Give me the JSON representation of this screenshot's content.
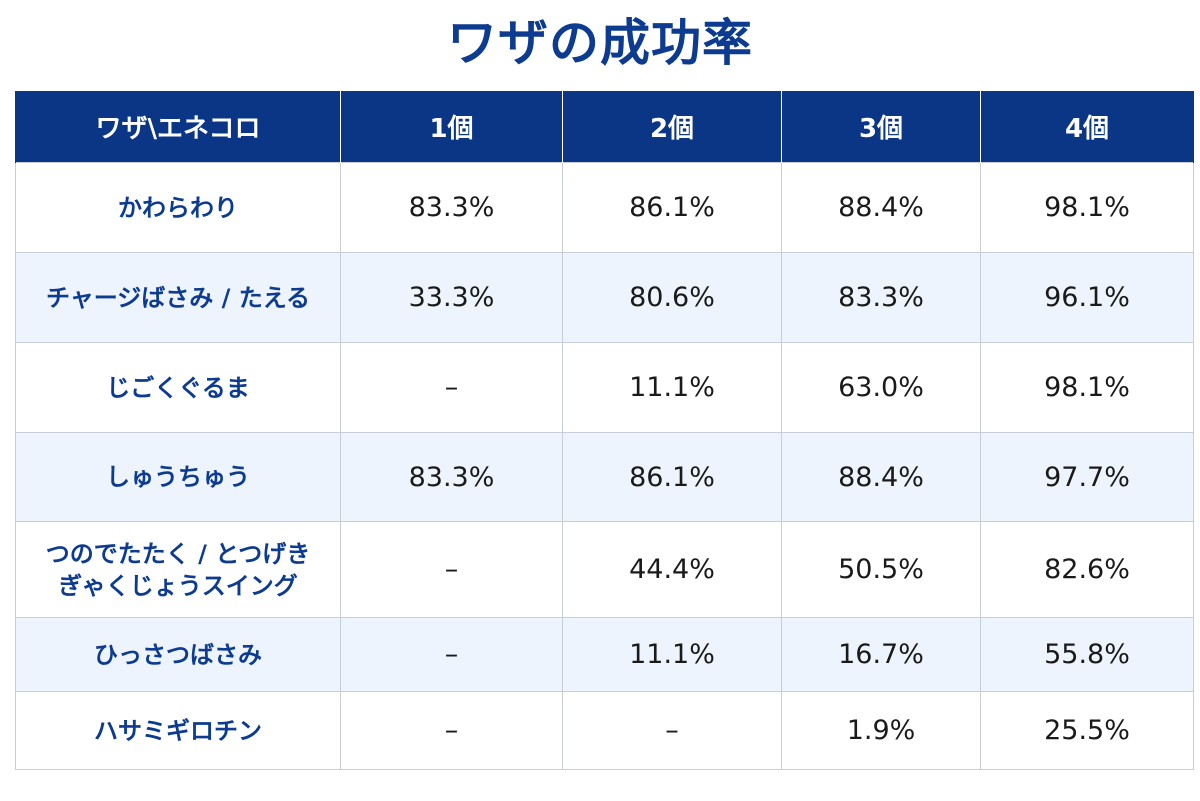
{
  "title": "ワザの成功率",
  "table": {
    "headers": [
      "ワザ\\エネコロ",
      "1個",
      "2個",
      "3個",
      "4個"
    ],
    "rows": [
      {
        "name": [
          "かわらわり"
        ],
        "values": [
          "83.3%",
          "86.1%",
          "88.4%",
          "98.1%"
        ]
      },
      {
        "name": [
          "チャージばさみ / たえる"
        ],
        "values": [
          "33.3%",
          "80.6%",
          "83.3%",
          "96.1%"
        ]
      },
      {
        "name": [
          "じごくぐるま"
        ],
        "values": [
          "–",
          "11.1%",
          "63.0%",
          "98.1%"
        ]
      },
      {
        "name": [
          "しゅうちゅう"
        ],
        "values": [
          "83.3%",
          "86.1%",
          "88.4%",
          "97.7%"
        ]
      },
      {
        "name": [
          "つのでたたく / とつげき",
          "ぎゃくじょうスイング"
        ],
        "values": [
          "–",
          "44.4%",
          "50.5%",
          "82.6%"
        ]
      },
      {
        "name": [
          "ひっさつばさみ"
        ],
        "values": [
          "–",
          "11.1%",
          "16.7%",
          "55.8%"
        ]
      },
      {
        "name": [
          "ハサミギロチン"
        ],
        "values": [
          "–",
          "–",
          "1.9%",
          "25.5%"
        ]
      }
    ]
  }
}
